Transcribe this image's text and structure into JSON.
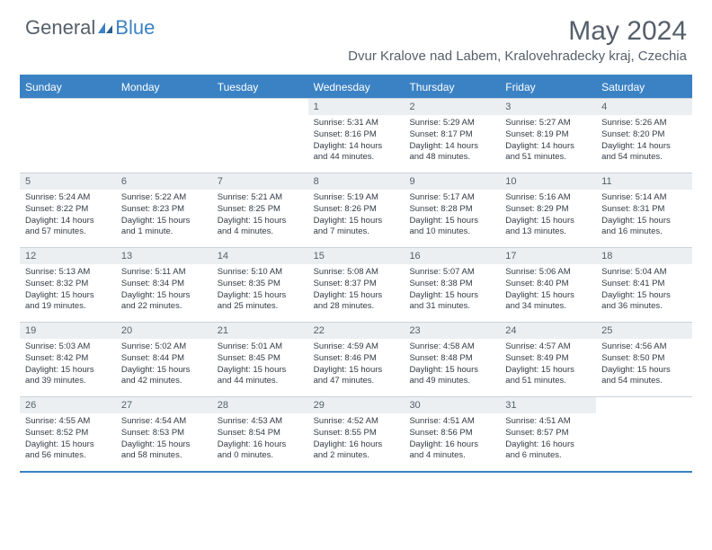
{
  "logo": {
    "general": "General",
    "blue": "Blue"
  },
  "title": "May 2024",
  "location": "Dvur Kralove nad Labem, Kralovehradecky kraj, Czechia",
  "colors": {
    "brand_blue": "#3b82c4",
    "header_text": "#555f6a",
    "cell_num_bg": "#eceff2",
    "rule": "#c9d2da"
  },
  "weekdays": [
    "Sunday",
    "Monday",
    "Tuesday",
    "Wednesday",
    "Thursday",
    "Friday",
    "Saturday"
  ],
  "weeks": [
    [
      {
        "n": "",
        "sr": "",
        "ss": "",
        "dl": ""
      },
      {
        "n": "",
        "sr": "",
        "ss": "",
        "dl": ""
      },
      {
        "n": "",
        "sr": "",
        "ss": "",
        "dl": ""
      },
      {
        "n": "1",
        "sr": "5:31 AM",
        "ss": "8:16 PM",
        "dl": "14 hours and 44 minutes."
      },
      {
        "n": "2",
        "sr": "5:29 AM",
        "ss": "8:17 PM",
        "dl": "14 hours and 48 minutes."
      },
      {
        "n": "3",
        "sr": "5:27 AM",
        "ss": "8:19 PM",
        "dl": "14 hours and 51 minutes."
      },
      {
        "n": "4",
        "sr": "5:26 AM",
        "ss": "8:20 PM",
        "dl": "14 hours and 54 minutes."
      }
    ],
    [
      {
        "n": "5",
        "sr": "5:24 AM",
        "ss": "8:22 PM",
        "dl": "14 hours and 57 minutes."
      },
      {
        "n": "6",
        "sr": "5:22 AM",
        "ss": "8:23 PM",
        "dl": "15 hours and 1 minute."
      },
      {
        "n": "7",
        "sr": "5:21 AM",
        "ss": "8:25 PM",
        "dl": "15 hours and 4 minutes."
      },
      {
        "n": "8",
        "sr": "5:19 AM",
        "ss": "8:26 PM",
        "dl": "15 hours and 7 minutes."
      },
      {
        "n": "9",
        "sr": "5:17 AM",
        "ss": "8:28 PM",
        "dl": "15 hours and 10 minutes."
      },
      {
        "n": "10",
        "sr": "5:16 AM",
        "ss": "8:29 PM",
        "dl": "15 hours and 13 minutes."
      },
      {
        "n": "11",
        "sr": "5:14 AM",
        "ss": "8:31 PM",
        "dl": "15 hours and 16 minutes."
      }
    ],
    [
      {
        "n": "12",
        "sr": "5:13 AM",
        "ss": "8:32 PM",
        "dl": "15 hours and 19 minutes."
      },
      {
        "n": "13",
        "sr": "5:11 AM",
        "ss": "8:34 PM",
        "dl": "15 hours and 22 minutes."
      },
      {
        "n": "14",
        "sr": "5:10 AM",
        "ss": "8:35 PM",
        "dl": "15 hours and 25 minutes."
      },
      {
        "n": "15",
        "sr": "5:08 AM",
        "ss": "8:37 PM",
        "dl": "15 hours and 28 minutes."
      },
      {
        "n": "16",
        "sr": "5:07 AM",
        "ss": "8:38 PM",
        "dl": "15 hours and 31 minutes."
      },
      {
        "n": "17",
        "sr": "5:06 AM",
        "ss": "8:40 PM",
        "dl": "15 hours and 34 minutes."
      },
      {
        "n": "18",
        "sr": "5:04 AM",
        "ss": "8:41 PM",
        "dl": "15 hours and 36 minutes."
      }
    ],
    [
      {
        "n": "19",
        "sr": "5:03 AM",
        "ss": "8:42 PM",
        "dl": "15 hours and 39 minutes."
      },
      {
        "n": "20",
        "sr": "5:02 AM",
        "ss": "8:44 PM",
        "dl": "15 hours and 42 minutes."
      },
      {
        "n": "21",
        "sr": "5:01 AM",
        "ss": "8:45 PM",
        "dl": "15 hours and 44 minutes."
      },
      {
        "n": "22",
        "sr": "4:59 AM",
        "ss": "8:46 PM",
        "dl": "15 hours and 47 minutes."
      },
      {
        "n": "23",
        "sr": "4:58 AM",
        "ss": "8:48 PM",
        "dl": "15 hours and 49 minutes."
      },
      {
        "n": "24",
        "sr": "4:57 AM",
        "ss": "8:49 PM",
        "dl": "15 hours and 51 minutes."
      },
      {
        "n": "25",
        "sr": "4:56 AM",
        "ss": "8:50 PM",
        "dl": "15 hours and 54 minutes."
      }
    ],
    [
      {
        "n": "26",
        "sr": "4:55 AM",
        "ss": "8:52 PM",
        "dl": "15 hours and 56 minutes."
      },
      {
        "n": "27",
        "sr": "4:54 AM",
        "ss": "8:53 PM",
        "dl": "15 hours and 58 minutes."
      },
      {
        "n": "28",
        "sr": "4:53 AM",
        "ss": "8:54 PM",
        "dl": "16 hours and 0 minutes."
      },
      {
        "n": "29",
        "sr": "4:52 AM",
        "ss": "8:55 PM",
        "dl": "16 hours and 2 minutes."
      },
      {
        "n": "30",
        "sr": "4:51 AM",
        "ss": "8:56 PM",
        "dl": "16 hours and 4 minutes."
      },
      {
        "n": "31",
        "sr": "4:51 AM",
        "ss": "8:57 PM",
        "dl": "16 hours and 6 minutes."
      },
      {
        "n": "",
        "sr": "",
        "ss": "",
        "dl": ""
      }
    ]
  ],
  "labels": {
    "sunrise": "Sunrise:",
    "sunset": "Sunset:",
    "daylight": "Daylight:"
  }
}
